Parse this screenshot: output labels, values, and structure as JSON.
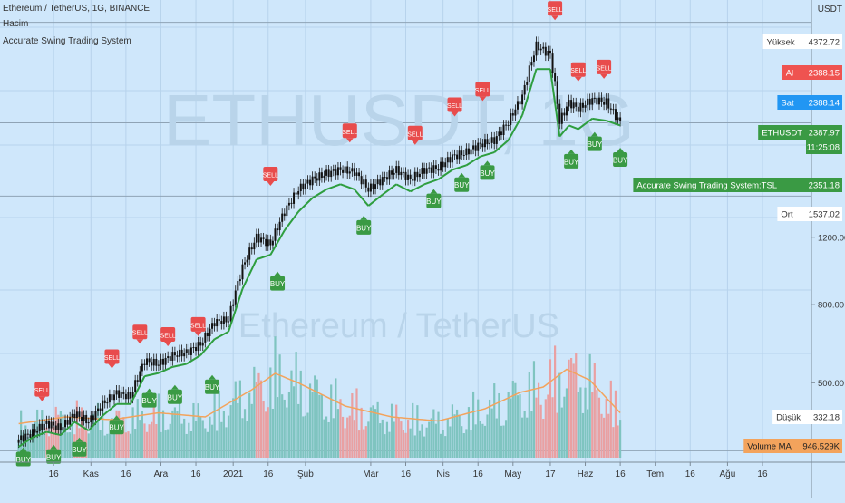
{
  "header": {
    "symbol_line": "Ethereum / TetherUS, 1G, BINANCE",
    "volume_label": "Hacim",
    "indicator_label": "Accurate Swing Trading System"
  },
  "watermark": {
    "big": "ETHUSDT, 1G",
    "small": "Ethereum / TetherUS"
  },
  "colors": {
    "background": "#cfe7fb",
    "grid": "#b7d3ec",
    "candle": "#111111",
    "tsl_up": "#2e9e3f",
    "tsl_down": "#e84545",
    "buy": "#3a9a44",
    "sell": "#e84c4c",
    "vol_up": "#7fc4c0",
    "vol_down": "#e9a0a2",
    "vol_ma": "#f3a35c",
    "hline": "#8fa3b5"
  },
  "price_axis": {
    "unit": "USDT",
    "ticks": [
      {
        "label": "1200.00",
        "value": 1200
      },
      {
        "label": "800.00",
        "value": 800
      },
      {
        "label": "500.00",
        "value": 500
      }
    ],
    "tags": [
      {
        "label": "Yüksek",
        "value": "4372.72",
        "kind": "plain",
        "price": 4372.72
      },
      {
        "label": "Al",
        "value": "2388.15",
        "kind": "red",
        "price": 2388.15
      },
      {
        "label": "Sat",
        "value": "2388.14",
        "kind": "blue",
        "price": 2388.14
      },
      {
        "label": "ETHUSDT",
        "value": "2387.97",
        "kind": "green",
        "price": 2387.97,
        "extra": "11:25:08"
      },
      {
        "label": "Accurate Swing Trading System:TSL",
        "value": "2351.18",
        "kind": "green",
        "price": 2351.18
      },
      {
        "label": "Ort",
        "value": "1537.02",
        "kind": "plain",
        "price": 1537.02
      },
      {
        "label": "Düşük",
        "value": "332.18",
        "kind": "plain",
        "price": 332.18
      },
      {
        "label": "Volume MA",
        "value": "946.529K",
        "kind": "orange",
        "price": null
      }
    ]
  },
  "time_axis": [
    {
      "label": "16",
      "day": 15
    },
    {
      "label": "Kas",
      "day": 31
    },
    {
      "label": "16",
      "day": 46
    },
    {
      "label": "Ara",
      "day": 61
    },
    {
      "label": "16",
      "day": 76
    },
    {
      "label": "2021",
      "day": 92
    },
    {
      "label": "16",
      "day": 107
    },
    {
      "label": "Şub",
      "day": 123
    },
    {
      "label": "Mar",
      "day": 151
    },
    {
      "label": "16",
      "day": 166
    },
    {
      "label": "Nis",
      "day": 182
    },
    {
      "label": "16",
      "day": 197
    },
    {
      "label": "May",
      "day": 212
    },
    {
      "label": "17",
      "day": 228
    },
    {
      "label": "Haz",
      "day": 243
    },
    {
      "label": "16",
      "day": 258
    },
    {
      "label": "Tem",
      "day": 273
    },
    {
      "label": "16",
      "day": 288
    },
    {
      "label": "Ağu",
      "day": 304
    },
    {
      "label": "16",
      "day": 319
    }
  ],
  "chart_data": {
    "type": "line",
    "title": "Ethereum / TetherUS, 1G, BINANCE",
    "x_unit": "days since 2020-10-01 (approx.)",
    "series": [
      {
        "name": "ETHUSDT close (approx.)",
        "points": [
          [
            0,
            355
          ],
          [
            6,
            370
          ],
          [
            12,
            392
          ],
          [
            18,
            380
          ],
          [
            24,
            415
          ],
          [
            30,
            395
          ],
          [
            36,
            440
          ],
          [
            42,
            470
          ],
          [
            48,
            460
          ],
          [
            54,
            570
          ],
          [
            60,
            560
          ],
          [
            66,
            590
          ],
          [
            72,
            600
          ],
          [
            78,
            630
          ],
          [
            84,
            720
          ],
          [
            90,
            730
          ],
          [
            96,
            1000
          ],
          [
            102,
            1200
          ],
          [
            108,
            1150
          ],
          [
            114,
            1400
          ],
          [
            120,
            1600
          ],
          [
            126,
            1700
          ],
          [
            132,
            1760
          ],
          [
            138,
            1800
          ],
          [
            144,
            1780
          ],
          [
            150,
            1600
          ],
          [
            156,
            1700
          ],
          [
            162,
            1800
          ],
          [
            168,
            1700
          ],
          [
            174,
            1800
          ],
          [
            180,
            1820
          ],
          [
            186,
            1950
          ],
          [
            192,
            2000
          ],
          [
            198,
            2100
          ],
          [
            204,
            2150
          ],
          [
            210,
            2400
          ],
          [
            216,
            2800
          ],
          [
            222,
            3800
          ],
          [
            228,
            3600
          ],
          [
            232,
            2400
          ],
          [
            236,
            2700
          ],
          [
            240,
            2600
          ],
          [
            246,
            2750
          ],
          [
            252,
            2700
          ],
          [
            258,
            2388
          ]
        ]
      },
      {
        "name": "Accurate Swing Trading System:TSL (approx.)",
        "points": [
          [
            0,
            340
          ],
          [
            6,
            360
          ],
          [
            12,
            372
          ],
          [
            18,
            365
          ],
          [
            24,
            395
          ],
          [
            30,
            375
          ],
          [
            36,
            410
          ],
          [
            42,
            440
          ],
          [
            48,
            440
          ],
          [
            54,
            520
          ],
          [
            60,
            530
          ],
          [
            66,
            550
          ],
          [
            72,
            560
          ],
          [
            78,
            590
          ],
          [
            84,
            650
          ],
          [
            90,
            680
          ],
          [
            96,
            880
          ],
          [
            102,
            1050
          ],
          [
            108,
            1080
          ],
          [
            114,
            1250
          ],
          [
            120,
            1400
          ],
          [
            126,
            1520
          ],
          [
            132,
            1600
          ],
          [
            138,
            1650
          ],
          [
            144,
            1600
          ],
          [
            150,
            1450
          ],
          [
            156,
            1550
          ],
          [
            162,
            1650
          ],
          [
            168,
            1580
          ],
          [
            174,
            1650
          ],
          [
            180,
            1700
          ],
          [
            186,
            1800
          ],
          [
            192,
            1850
          ],
          [
            198,
            1950
          ],
          [
            204,
            2000
          ],
          [
            210,
            2150
          ],
          [
            216,
            2500
          ],
          [
            222,
            3300
          ],
          [
            228,
            3300
          ],
          [
            232,
            2200
          ],
          [
            236,
            2350
          ],
          [
            240,
            2300
          ],
          [
            246,
            2450
          ],
          [
            252,
            2420
          ],
          [
            258,
            2351
          ]
        ]
      }
    ],
    "signals": [
      {
        "label": "BUY",
        "day": 2,
        "price": 330
      },
      {
        "label": "SELL",
        "day": 10,
        "price": 460
      },
      {
        "label": "BUY",
        "day": 15,
        "price": 335
      },
      {
        "label": "BUY",
        "day": 26,
        "price": 350
      },
      {
        "label": "SELL",
        "day": 40,
        "price": 560
      },
      {
        "label": "BUY",
        "day": 42,
        "price": 400
      },
      {
        "label": "SELL",
        "day": 52,
        "price": 650
      },
      {
        "label": "BUY",
        "day": 56,
        "price": 470
      },
      {
        "label": "SELL",
        "day": 64,
        "price": 640
      },
      {
        "label": "BUY",
        "day": 67,
        "price": 480
      },
      {
        "label": "SELL",
        "day": 77,
        "price": 680
      },
      {
        "label": "BUY",
        "day": 83,
        "price": 510
      },
      {
        "label": "SELL",
        "day": 108,
        "price": 1680
      },
      {
        "label": "BUY",
        "day": 111,
        "price": 950
      },
      {
        "label": "SELL",
        "day": 142,
        "price": 2180
      },
      {
        "label": "BUY",
        "day": 148,
        "price": 1330
      },
      {
        "label": "SELL",
        "day": 170,
        "price": 2150
      },
      {
        "label": "BUY",
        "day": 178,
        "price": 1560
      },
      {
        "label": "SELL",
        "day": 187,
        "price": 2550
      },
      {
        "label": "BUY",
        "day": 190,
        "price": 1720
      },
      {
        "label": "SELL",
        "day": 199,
        "price": 2800
      },
      {
        "label": "BUY",
        "day": 201,
        "price": 1850
      },
      {
        "label": "SELL",
        "day": 230,
        "price": 4550
      },
      {
        "label": "BUY",
        "day": 237,
        "price": 1980
      },
      {
        "label": "SELL",
        "day": 240,
        "price": 3150
      },
      {
        "label": "BUY",
        "day": 247,
        "price": 2200
      },
      {
        "label": "SELL",
        "day": 251,
        "price": 3200
      },
      {
        "label": "BUY",
        "day": 258,
        "price": 2000
      }
    ],
    "volume": {
      "unit": "relative",
      "ma_points": [
        [
          0,
          0.25
        ],
        [
          20,
          0.3
        ],
        [
          40,
          0.28
        ],
        [
          60,
          0.33
        ],
        [
          80,
          0.3
        ],
        [
          100,
          0.5
        ],
        [
          110,
          0.62
        ],
        [
          120,
          0.55
        ],
        [
          140,
          0.38
        ],
        [
          160,
          0.3
        ],
        [
          180,
          0.27
        ],
        [
          200,
          0.36
        ],
        [
          215,
          0.48
        ],
        [
          225,
          0.52
        ],
        [
          235,
          0.65
        ],
        [
          245,
          0.57
        ],
        [
          258,
          0.33
        ]
      ]
    },
    "price_scale": "log",
    "ylim": [
      310,
      5000
    ],
    "xlim": [
      -8,
      340
    ],
    "horizontal_lines": [
      4372.72,
      2388,
      1537.02,
      332.18
    ]
  }
}
